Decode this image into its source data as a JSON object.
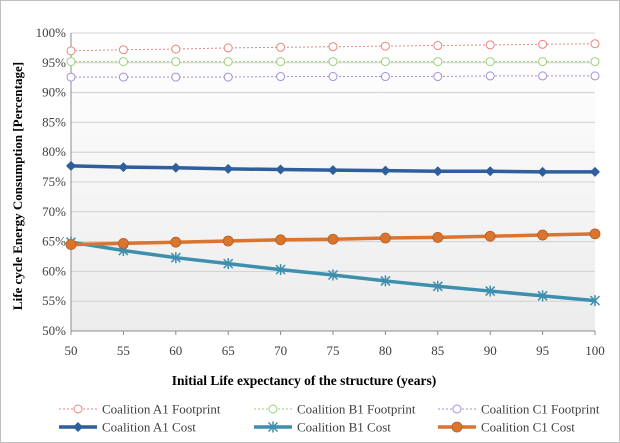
{
  "chart_data": {
    "type": "line",
    "xlabel": "Initial Life expectancy of the structure (years)",
    "ylabel": "Life cycle Energy Consumption  [Percentage]",
    "x": [
      50,
      55,
      60,
      65,
      70,
      75,
      80,
      85,
      90,
      95,
      100
    ],
    "xlim": [
      50,
      100
    ],
    "ylim": [
      50,
      100
    ],
    "yticks": [
      50,
      55,
      60,
      65,
      70,
      75,
      80,
      85,
      90,
      95,
      100
    ],
    "ytick_labels": [
      "50%",
      "55%",
      "60%",
      "65%",
      "70%",
      "75%",
      "80%",
      "85%",
      "90%",
      "95%",
      "100%"
    ],
    "xtick_labels": [
      "50",
      "55",
      "60",
      "65",
      "70",
      "75",
      "80",
      "85",
      "90",
      "95",
      "100"
    ],
    "grid": true,
    "legend_position": "bottom",
    "series": [
      {
        "name": "Coalition A1 Footprint",
        "color": "#e8867c",
        "style": "dotted",
        "marker": "open-circle",
        "values": [
          97.0,
          97.2,
          97.3,
          97.5,
          97.6,
          97.7,
          97.8,
          97.9,
          98.0,
          98.1,
          98.2
        ]
      },
      {
        "name": "Coalition B1 Footprint",
        "color": "#9bd176",
        "style": "dotted",
        "marker": "open-circle",
        "values": [
          95.2,
          95.2,
          95.2,
          95.2,
          95.2,
          95.2,
          95.2,
          95.2,
          95.2,
          95.2,
          95.2
        ]
      },
      {
        "name": "Coalition C1 Footprint",
        "color": "#a58fd4",
        "style": "dotted",
        "marker": "open-circle",
        "values": [
          92.6,
          92.6,
          92.6,
          92.6,
          92.7,
          92.7,
          92.7,
          92.7,
          92.8,
          92.8,
          92.8
        ]
      },
      {
        "name": "Coalition A1 Cost",
        "color": "#2e5e9c",
        "style": "solid",
        "marker": "diamond",
        "values": [
          77.7,
          77.5,
          77.4,
          77.2,
          77.1,
          77.0,
          76.9,
          76.8,
          76.8,
          76.7,
          76.7
        ]
      },
      {
        "name": "Coalition B1 Cost",
        "color": "#3d8fad",
        "style": "solid",
        "marker": "star",
        "values": [
          64.9,
          63.5,
          62.3,
          61.3,
          60.3,
          59.4,
          58.4,
          57.5,
          56.7,
          55.9,
          55.1
        ]
      },
      {
        "name": "Coalition C1 Cost",
        "color": "#d9752e",
        "style": "solid",
        "marker": "filled-circle",
        "values": [
          64.5,
          64.7,
          64.9,
          65.1,
          65.3,
          65.4,
          65.6,
          65.7,
          65.9,
          66.1,
          66.3
        ]
      }
    ]
  }
}
